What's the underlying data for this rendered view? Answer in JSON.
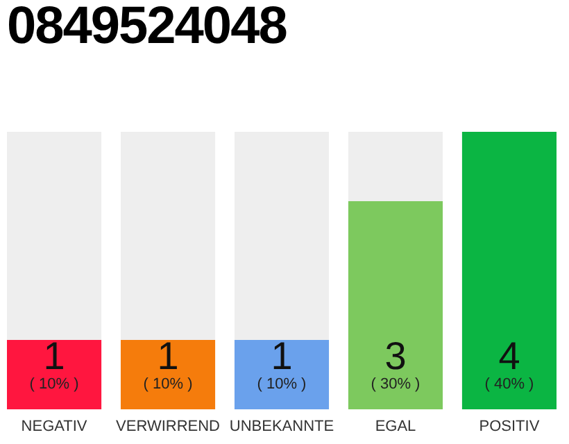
{
  "chart_data": {
    "type": "bar",
    "title": "0849524048",
    "categories": [
      "NEGATIV",
      "VERWIRREND",
      "UNBEKANNTE",
      "EGAL",
      "POSITIV"
    ],
    "values": [
      1,
      1,
      1,
      3,
      4
    ],
    "colors": [
      "#ff163f",
      "#f57c0c",
      "#6aa1ec",
      "#7dc95e",
      "#0bb543"
    ],
    "ylim": [
      0,
      4
    ],
    "data_labels": true,
    "annotations": [
      "( 10% )",
      "( 10% )",
      "( 10% )",
      "( 30% )",
      "( 40% )"
    ],
    "grid": false
  }
}
